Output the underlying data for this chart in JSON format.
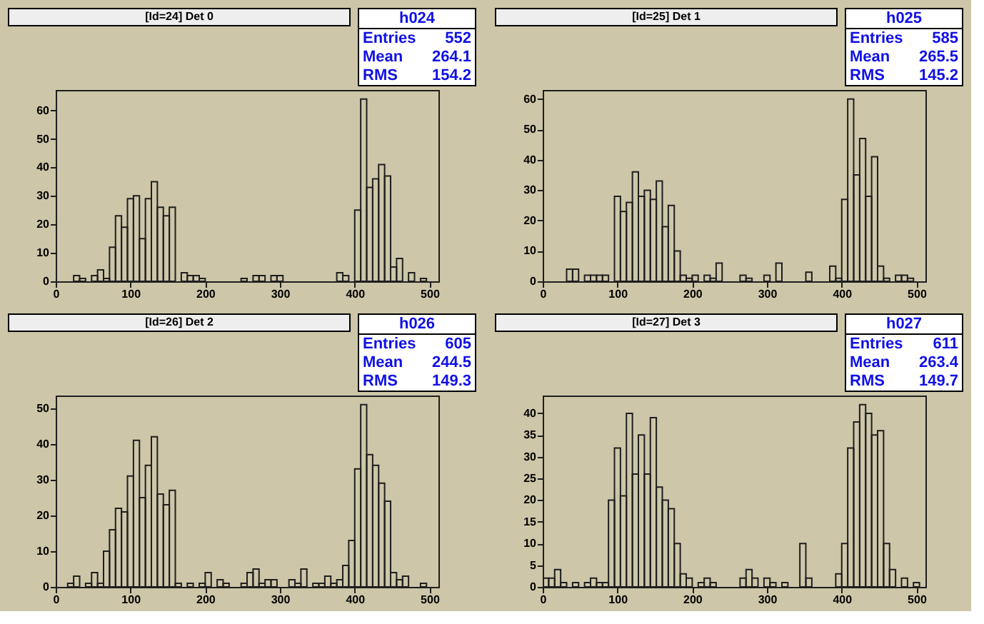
{
  "chart_data": [
    {
      "type": "histogram",
      "title": "[Id=24] Det 0",
      "color": "#1e1e1e",
      "bins": [
        0,
        8,
        16,
        24,
        32,
        40,
        48,
        56,
        64,
        72,
        80,
        88,
        96,
        104,
        112,
        120,
        128,
        136,
        144,
        152,
        160,
        168,
        176,
        184,
        192,
        200,
        208,
        216,
        224,
        232,
        240,
        248,
        256,
        264,
        272,
        280,
        288,
        296,
        304,
        312,
        320,
        328,
        336,
        344,
        352,
        360,
        368,
        376,
        384,
        392,
        400,
        408,
        416,
        424,
        432,
        440,
        448,
        456,
        464,
        472,
        480,
        488,
        496,
        504,
        512
      ],
      "values": [
        0,
        0,
        0,
        2,
        1,
        0,
        2,
        4,
        1,
        12,
        23,
        19,
        29,
        30,
        15,
        29,
        35,
        26,
        23,
        26,
        0,
        3,
        2,
        2,
        1,
        0,
        0,
        0,
        0,
        0,
        0,
        1,
        0,
        2,
        2,
        0,
        2,
        2,
        0,
        0,
        0,
        0,
        0,
        0,
        0,
        0,
        0,
        3,
        2,
        0,
        25,
        64,
        33,
        36,
        41,
        37,
        5,
        8,
        0,
        3,
        0,
        1,
        0,
        0
      ],
      "xlim": [
        0,
        512
      ],
      "xticks": [
        0,
        100,
        200,
        300,
        400,
        500
      ],
      "ylim": [
        0,
        67.2
      ],
      "yticks": [
        0,
        10,
        20,
        30,
        40,
        50,
        60
      ],
      "annotations": [
        "h024",
        "Entries",
        "552",
        "Mean",
        "264.1",
        "RMS",
        "154.2"
      ]
    },
    {
      "type": "histogram",
      "title": "[Id=25] Det 1",
      "color": "#1e1e1e",
      "bins": [
        0,
        8,
        16,
        24,
        32,
        40,
        48,
        56,
        64,
        72,
        80,
        88,
        96,
        104,
        112,
        120,
        128,
        136,
        144,
        152,
        160,
        168,
        176,
        184,
        192,
        200,
        208,
        216,
        224,
        232,
        240,
        248,
        256,
        264,
        272,
        280,
        288,
        296,
        304,
        312,
        320,
        328,
        336,
        344,
        352,
        360,
        368,
        376,
        384,
        392,
        400,
        408,
        416,
        424,
        432,
        440,
        448,
        456,
        464,
        472,
        480,
        488,
        496,
        504,
        512
      ],
      "values": [
        0,
        0,
        0,
        0,
        4,
        4,
        0,
        2,
        2,
        2,
        2,
        0,
        28,
        23,
        26,
        36,
        28,
        30,
        27,
        33,
        18,
        25,
        10,
        2,
        1,
        2,
        0,
        2,
        1,
        6,
        0,
        0,
        0,
        2,
        1,
        0,
        0,
        2,
        0,
        6,
        0,
        0,
        0,
        0,
        3,
        0,
        0,
        0,
        5,
        1,
        27,
        60,
        35,
        47,
        28,
        41,
        5,
        1,
        0,
        2,
        2,
        1,
        0,
        0
      ],
      "xlim": [
        0,
        512
      ],
      "xticks": [
        0,
        100,
        200,
        300,
        400,
        500
      ],
      "ylim": [
        0,
        63
      ],
      "yticks": [
        0,
        10,
        20,
        30,
        40,
        50,
        60
      ],
      "annotations": [
        "h025",
        "Entries",
        "585",
        "Mean",
        "265.5",
        "RMS",
        "145.2"
      ]
    },
    {
      "type": "histogram",
      "title": "[Id=26] Det 2",
      "color": "#1e1e1e",
      "bins": [
        0,
        8,
        16,
        24,
        32,
        40,
        48,
        56,
        64,
        72,
        80,
        88,
        96,
        104,
        112,
        120,
        128,
        136,
        144,
        152,
        160,
        168,
        176,
        184,
        192,
        200,
        208,
        216,
        224,
        232,
        240,
        248,
        256,
        264,
        272,
        280,
        288,
        296,
        304,
        312,
        320,
        328,
        336,
        344,
        352,
        360,
        368,
        376,
        384,
        392,
        400,
        408,
        416,
        424,
        432,
        440,
        448,
        456,
        464,
        472,
        480,
        488,
        496,
        504,
        512
      ],
      "values": [
        0,
        0,
        1,
        3,
        0,
        1,
        4,
        1,
        10,
        16,
        22,
        21,
        31,
        41,
        25,
        34,
        42,
        26,
        23,
        27,
        1,
        0,
        1,
        0,
        1,
        4,
        0,
        2,
        1,
        0,
        0,
        1,
        4,
        5,
        1,
        2,
        2,
        0,
        0,
        2,
        1,
        5,
        0,
        1,
        1,
        3,
        1,
        2,
        6,
        13,
        33,
        51,
        37,
        34,
        29,
        24,
        4,
        2,
        3,
        0,
        0,
        1,
        0,
        0
      ],
      "xlim": [
        0,
        512
      ],
      "xticks": [
        0,
        100,
        200,
        300,
        400,
        500
      ],
      "ylim": [
        0,
        53.55
      ],
      "yticks": [
        0,
        10,
        20,
        30,
        40,
        50
      ],
      "annotations": [
        "h026",
        "Entries",
        "605",
        "Mean",
        "244.5",
        "RMS",
        "149.3"
      ]
    },
    {
      "type": "histogram",
      "title": "[Id=27] Det 3",
      "color": "#1e1e1e",
      "bins": [
        0,
        8,
        16,
        24,
        32,
        40,
        48,
        56,
        64,
        72,
        80,
        88,
        96,
        104,
        112,
        120,
        128,
        136,
        144,
        152,
        160,
        168,
        176,
        184,
        192,
        200,
        208,
        216,
        224,
        232,
        240,
        248,
        256,
        264,
        272,
        280,
        288,
        296,
        304,
        312,
        320,
        328,
        336,
        344,
        352,
        360,
        368,
        376,
        384,
        392,
        400,
        408,
        416,
        424,
        432,
        440,
        448,
        456,
        464,
        472,
        480,
        488,
        496,
        504,
        512
      ],
      "values": [
        2,
        2,
        4,
        1,
        0,
        1,
        0,
        1,
        2,
        1,
        1,
        20,
        32,
        21,
        40,
        26,
        35,
        26,
        39,
        23,
        20,
        18,
        10,
        3,
        2,
        0,
        1,
        2,
        1,
        0,
        0,
        0,
        0,
        2,
        4,
        2,
        0,
        2,
        1,
        0,
        1,
        0,
        0,
        10,
        2,
        0,
        0,
        0,
        0,
        3,
        10,
        32,
        38,
        42,
        40,
        35,
        36,
        10,
        4,
        0,
        2,
        0,
        1,
        0
      ],
      "xlim": [
        0,
        512
      ],
      "xticks": [
        0,
        100,
        200,
        300,
        400,
        500
      ],
      "ylim": [
        0,
        44.1
      ],
      "yticks": [
        0,
        5,
        10,
        15,
        20,
        25,
        30,
        35,
        40
      ],
      "annotations": [
        "h027",
        "Entries",
        "611",
        "Mean",
        "263.4",
        "RMS",
        "149.7"
      ]
    }
  ]
}
